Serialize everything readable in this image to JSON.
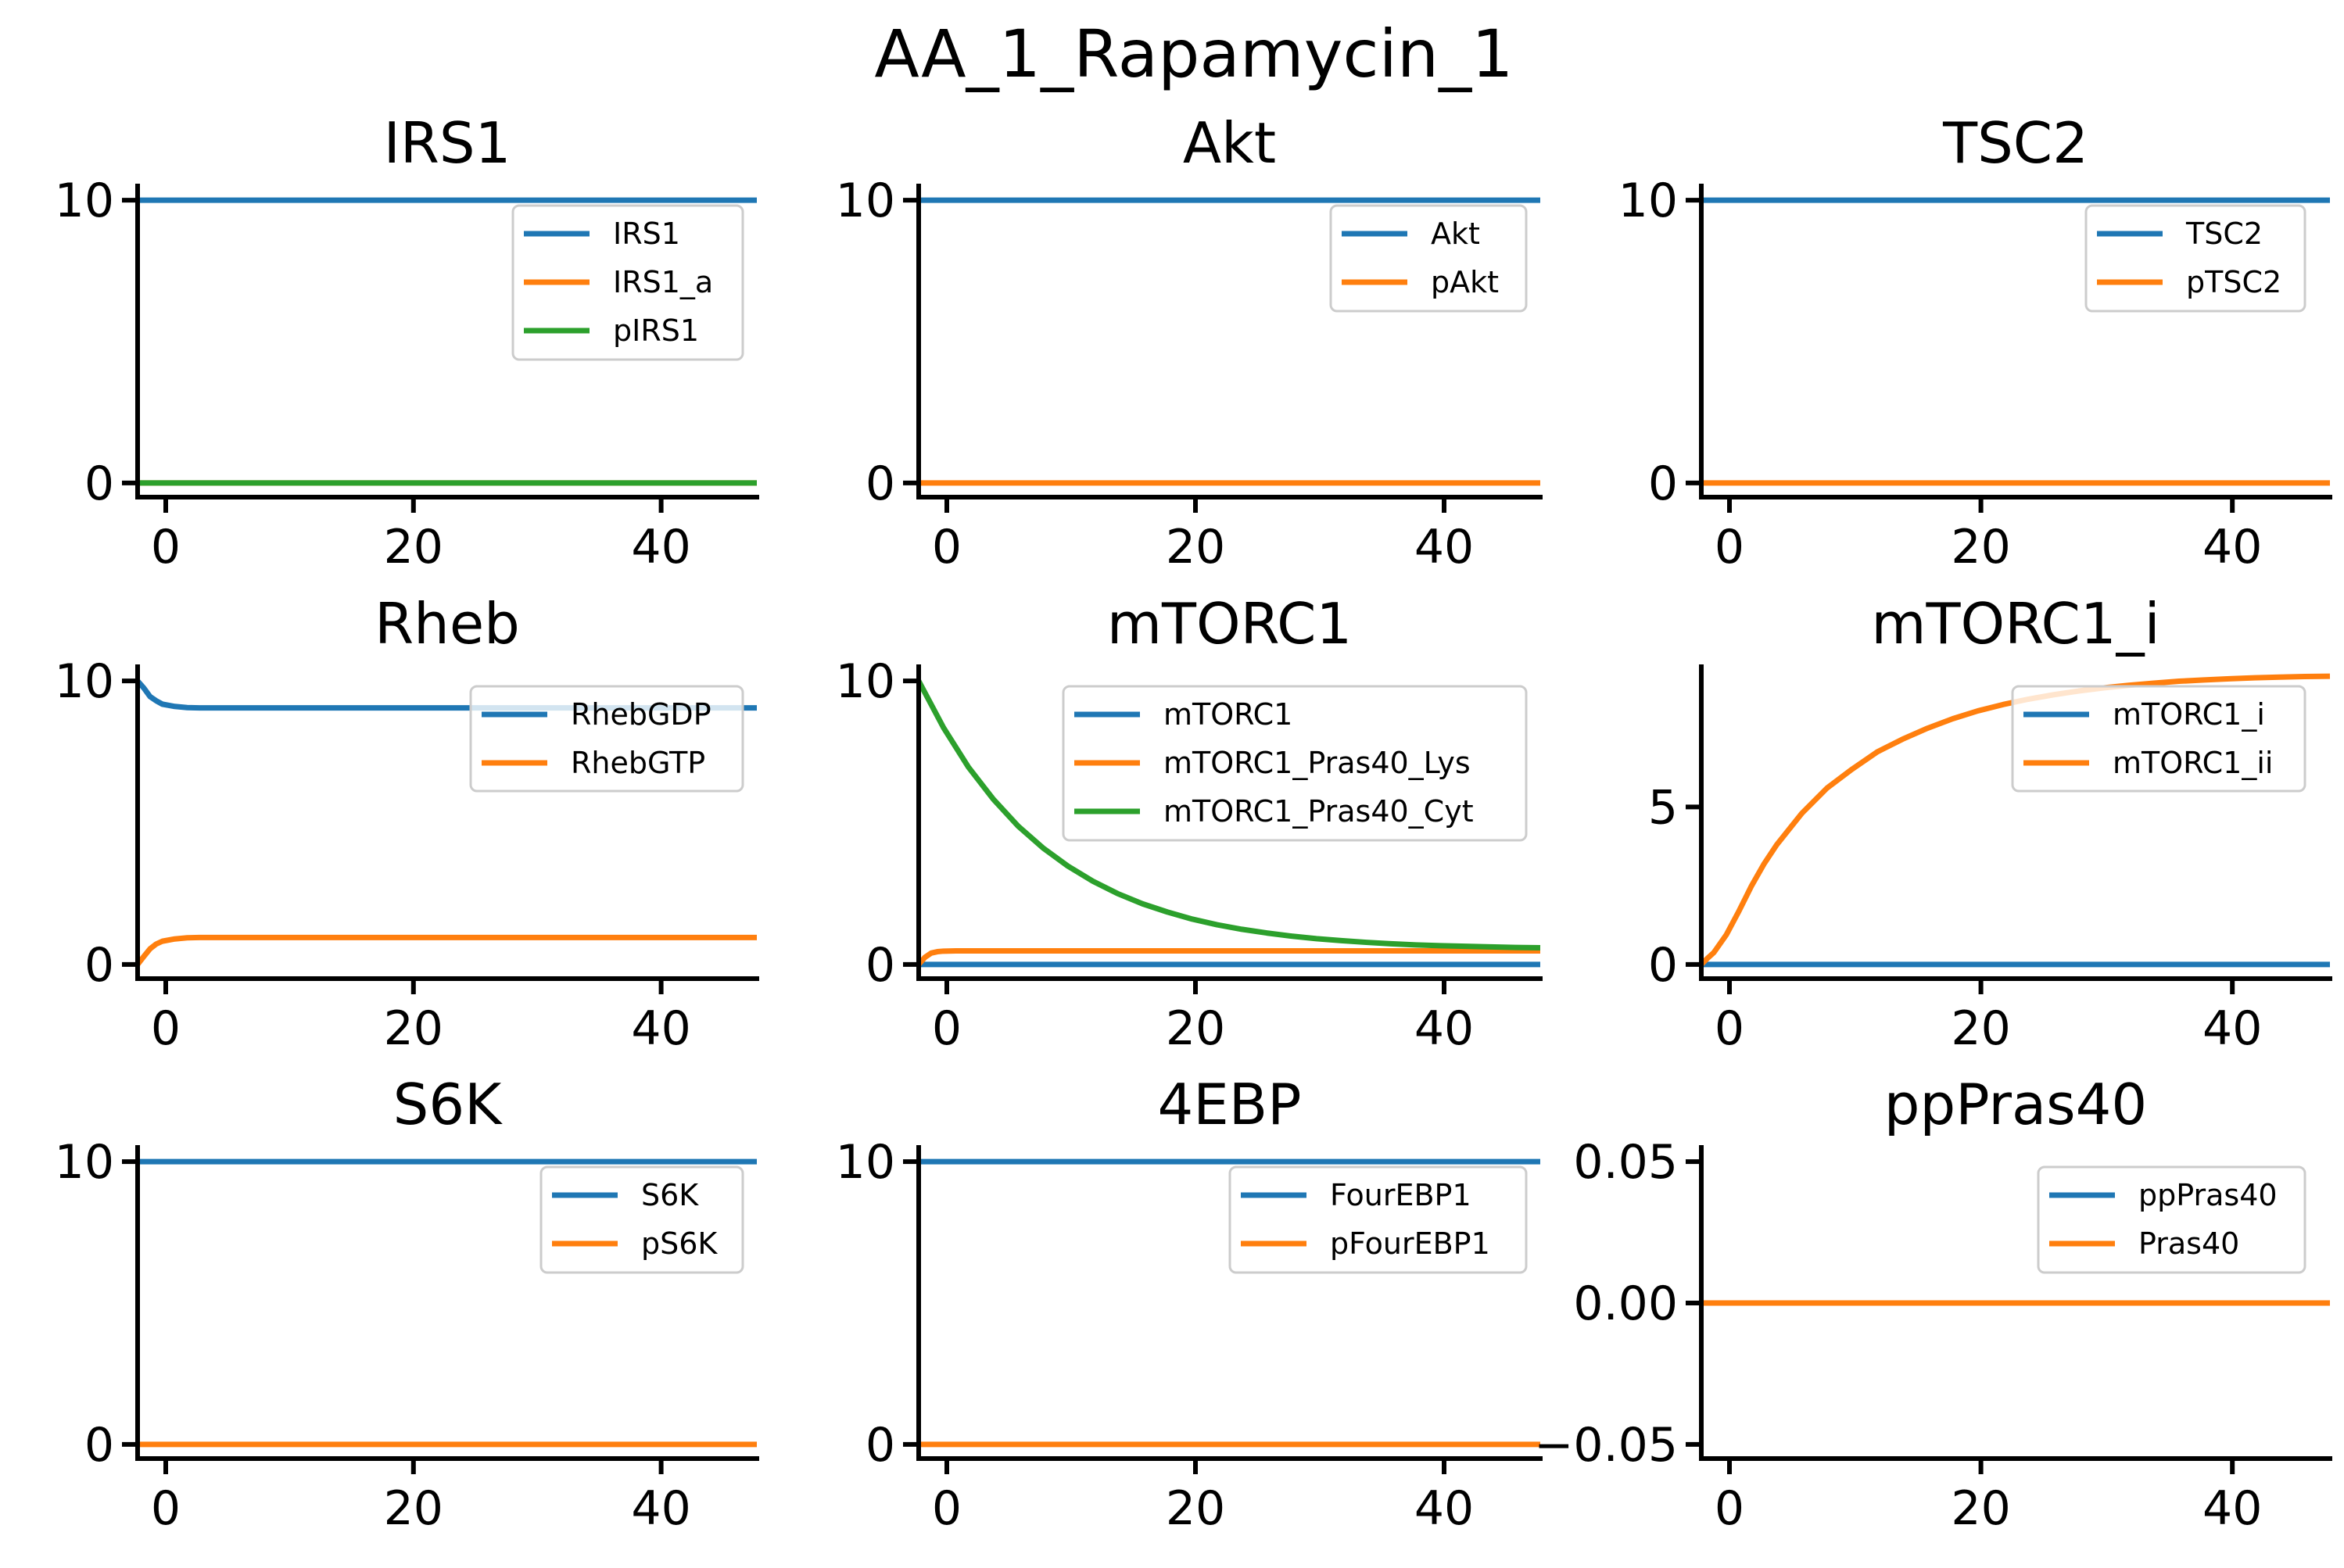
{
  "suptitle": "AA_1_Rapamycin_1",
  "colors": {
    "blue": "#1f77b4",
    "orange": "#ff7f0e",
    "green": "#2ca02c"
  },
  "chart_data": [
    {
      "type": "line",
      "title": "IRS1",
      "xlim": [
        0,
        50
      ],
      "ylim": [
        -0.5,
        10.5
      ],
      "xticks": [
        0,
        20,
        40
      ],
      "xtick_labels": [
        "0",
        "20",
        "40"
      ],
      "yticks": [
        0,
        10
      ],
      "ytick_labels": [
        "0",
        "10"
      ],
      "legend_loc": "upper right",
      "series": [
        {
          "name": "IRS1",
          "color": "#1f77b4",
          "x": [
            0,
            50
          ],
          "y": [
            10,
            10
          ]
        },
        {
          "name": "IRS1_a",
          "color": "#ff7f0e",
          "x": [
            0,
            50
          ],
          "y": [
            0,
            0
          ]
        },
        {
          "name": "pIRS1",
          "color": "#2ca02c",
          "x": [
            0,
            50
          ],
          "y": [
            0,
            0
          ]
        }
      ]
    },
    {
      "type": "line",
      "title": "Akt",
      "xlim": [
        0,
        50
      ],
      "ylim": [
        -0.5,
        10.5
      ],
      "xticks": [
        0,
        20,
        40
      ],
      "xtick_labels": [
        "0",
        "20",
        "40"
      ],
      "yticks": [
        0,
        10
      ],
      "ytick_labels": [
        "0",
        "10"
      ],
      "legend_loc": "upper right",
      "series": [
        {
          "name": "Akt",
          "color": "#1f77b4",
          "x": [
            0,
            50
          ],
          "y": [
            10,
            10
          ]
        },
        {
          "name": "pAkt",
          "color": "#ff7f0e",
          "x": [
            0,
            50
          ],
          "y": [
            0,
            0
          ]
        }
      ]
    },
    {
      "type": "line",
      "title": "TSC2",
      "xlim": [
        0,
        50
      ],
      "ylim": [
        -0.5,
        10.5
      ],
      "xticks": [
        0,
        20,
        40
      ],
      "xtick_labels": [
        "0",
        "20",
        "40"
      ],
      "yticks": [
        0,
        10
      ],
      "ytick_labels": [
        "0",
        "10"
      ],
      "legend_loc": "upper right",
      "series": [
        {
          "name": "TSC2",
          "color": "#1f77b4",
          "x": [
            0,
            50
          ],
          "y": [
            10,
            10
          ]
        },
        {
          "name": "pTSC2",
          "color": "#ff7f0e",
          "x": [
            0,
            50
          ],
          "y": [
            0,
            0
          ]
        }
      ]
    },
    {
      "type": "line",
      "title": "Rheb",
      "xlim": [
        0,
        50
      ],
      "ylim": [
        -0.5,
        10.5
      ],
      "xticks": [
        0,
        20,
        40
      ],
      "xtick_labels": [
        "0",
        "20",
        "40"
      ],
      "yticks": [
        0,
        10
      ],
      "ytick_labels": [
        "0",
        "10"
      ],
      "legend_loc": "upper right",
      "series": [
        {
          "name": "RhebGDP",
          "color": "#1f77b4",
          "x": [
            0,
            0.5,
            1,
            1.5,
            2,
            3,
            4,
            5,
            7,
            10,
            20,
            30,
            40,
            50
          ],
          "y": [
            10,
            9.75,
            9.45,
            9.3,
            9.18,
            9.1,
            9.06,
            9.05,
            9.05,
            9.05,
            9.05,
            9.05,
            9.05,
            9.05
          ]
        },
        {
          "name": "RhebGTP",
          "color": "#ff7f0e",
          "x": [
            0,
            0.5,
            1,
            1.5,
            2,
            3,
            4,
            5,
            7,
            10,
            20,
            30,
            40,
            50
          ],
          "y": [
            0,
            0.28,
            0.55,
            0.72,
            0.82,
            0.9,
            0.94,
            0.95,
            0.95,
            0.95,
            0.95,
            0.95,
            0.95,
            0.95
          ]
        }
      ]
    },
    {
      "type": "line",
      "title": "mTORC1",
      "xlim": [
        0,
        50
      ],
      "ylim": [
        -0.5,
        10.5
      ],
      "xticks": [
        0,
        20,
        40
      ],
      "xtick_labels": [
        "0",
        "20",
        "40"
      ],
      "yticks": [
        0,
        10
      ],
      "ytick_labels": [
        "0",
        "10"
      ],
      "legend_loc": "upper right",
      "series": [
        {
          "name": "mTORC1",
          "color": "#1f77b4",
          "x": [
            0,
            50
          ],
          "y": [
            0,
            0
          ]
        },
        {
          "name": "mTORC1_Pras40_Lys",
          "color": "#ff7f0e",
          "x": [
            0,
            0.5,
            1,
            1.5,
            2,
            3,
            5,
            10,
            20,
            30,
            40,
            50
          ],
          "y": [
            0,
            0.25,
            0.4,
            0.45,
            0.47,
            0.48,
            0.48,
            0.48,
            0.48,
            0.48,
            0.48,
            0.48
          ]
        },
        {
          "name": "mTORC1_Pras40_Cyt",
          "color": "#2ca02c",
          "x": [
            0,
            2,
            4,
            6,
            8,
            10,
            12,
            14,
            16,
            18,
            20,
            22,
            24,
            26,
            28,
            30,
            32,
            34,
            36,
            38,
            40,
            42,
            44,
            46,
            48,
            50
          ],
          "y": [
            10.0,
            8.35,
            6.96,
            5.83,
            4.88,
            4.11,
            3.47,
            2.94,
            2.5,
            2.14,
            1.85,
            1.6,
            1.4,
            1.24,
            1.11,
            1.0,
            0.91,
            0.84,
            0.78,
            0.73,
            0.69,
            0.66,
            0.64,
            0.62,
            0.6,
            0.59
          ]
        }
      ]
    },
    {
      "type": "line",
      "title": "mTORC1_i",
      "xlim": [
        0,
        50
      ],
      "ylim": [
        -0.45,
        9.45
      ],
      "xticks": [
        0,
        20,
        40
      ],
      "xtick_labels": [
        "0",
        "20",
        "40"
      ],
      "yticks": [
        0,
        5
      ],
      "ytick_labels": [
        "0",
        "5"
      ],
      "legend_loc": "upper right",
      "series": [
        {
          "name": "mTORC1_i",
          "color": "#1f77b4",
          "x": [
            0,
            50
          ],
          "y": [
            0,
            0
          ]
        },
        {
          "name": "mTORC1_ii",
          "color": "#ff7f0e",
          "x": [
            0,
            0.5,
            1,
            2,
            3,
            4,
            5,
            6,
            8,
            10,
            12,
            14,
            16,
            18,
            20,
            22,
            24,
            26,
            28,
            30,
            32,
            34,
            36,
            38,
            40,
            42,
            44,
            46,
            48,
            50
          ],
          "y": [
            0,
            0.2,
            0.38,
            0.95,
            1.7,
            2.5,
            3.2,
            3.8,
            4.8,
            5.6,
            6.2,
            6.75,
            7.15,
            7.5,
            7.8,
            8.05,
            8.25,
            8.42,
            8.56,
            8.68,
            8.78,
            8.86,
            8.93,
            8.99,
            9.03,
            9.07,
            9.1,
            9.12,
            9.14,
            9.15
          ]
        }
      ]
    },
    {
      "type": "line",
      "title": "S6K",
      "xlim": [
        0,
        50
      ],
      "ylim": [
        -0.5,
        10.5
      ],
      "xticks": [
        0,
        20,
        40
      ],
      "xtick_labels": [
        "0",
        "20",
        "40"
      ],
      "yticks": [
        0,
        10
      ],
      "ytick_labels": [
        "0",
        "10"
      ],
      "legend_loc": "upper right",
      "series": [
        {
          "name": "S6K",
          "color": "#1f77b4",
          "x": [
            0,
            50
          ],
          "y": [
            10,
            10
          ]
        },
        {
          "name": "pS6K",
          "color": "#ff7f0e",
          "x": [
            0,
            50
          ],
          "y": [
            0,
            0
          ]
        }
      ]
    },
    {
      "type": "line",
      "title": "4EBP",
      "xlim": [
        0,
        50
      ],
      "ylim": [
        -0.5,
        10.5
      ],
      "xticks": [
        0,
        20,
        40
      ],
      "xtick_labels": [
        "0",
        "20",
        "40"
      ],
      "yticks": [
        0,
        10
      ],
      "ytick_labels": [
        "0",
        "10"
      ],
      "legend_loc": "upper right",
      "series": [
        {
          "name": "FourEBP1",
          "color": "#1f77b4",
          "x": [
            0,
            50
          ],
          "y": [
            10,
            10
          ]
        },
        {
          "name": "pFourEBP1",
          "color": "#ff7f0e",
          "x": [
            0,
            50
          ],
          "y": [
            0,
            0
          ]
        }
      ]
    },
    {
      "type": "line",
      "title": "ppPras40",
      "xlim": [
        0,
        50
      ],
      "ylim": [
        -0.055,
        0.055
      ],
      "xticks": [
        0,
        20,
        40
      ],
      "xtick_labels": [
        "0",
        "20",
        "40"
      ],
      "yticks": [
        -0.05,
        0,
        0.05
      ],
      "ytick_labels": [
        "−0.05",
        "0.00",
        "0.05"
      ],
      "legend_loc": "upper right",
      "series": [
        {
          "name": "ppPras40",
          "color": "#1f77b4",
          "x": [
            0,
            50
          ],
          "y": [
            0,
            0
          ]
        },
        {
          "name": "Pras40",
          "color": "#ff7f0e",
          "x": [
            0,
            50
          ],
          "y": [
            0,
            0
          ]
        }
      ]
    }
  ]
}
